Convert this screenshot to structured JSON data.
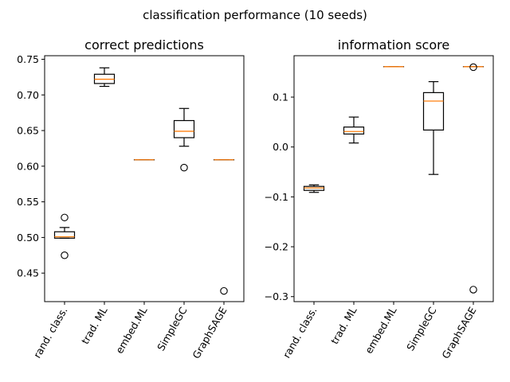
{
  "suptitle": "classification performance (10 seeds)",
  "chart_data": [
    {
      "type": "box",
      "title": "correct predictions",
      "categories": [
        "rand. class.",
        "trad. ML",
        "embed.ML",
        "SimpleGC",
        "GraphSAGE"
      ],
      "ylim": [
        0.41,
        0.755
      ],
      "yticks": [
        0.45,
        0.5,
        0.55,
        0.6,
        0.65,
        0.7,
        0.75
      ],
      "ytick_labels": [
        "0.45",
        "0.50",
        "0.55",
        "0.60",
        "0.65",
        "0.70",
        "0.75"
      ],
      "boxes": [
        {
          "whislo": 0.499,
          "q1": 0.499,
          "med": 0.501,
          "q3": 0.508,
          "whishi": 0.514,
          "fliers": [
            0.528,
            0.475
          ]
        },
        {
          "whislo": 0.712,
          "q1": 0.716,
          "med": 0.722,
          "q3": 0.729,
          "whishi": 0.738,
          "fliers": []
        },
        {
          "whislo": 0.609,
          "q1": 0.609,
          "med": 0.609,
          "q3": 0.609,
          "whishi": 0.609,
          "fliers": []
        },
        {
          "whislo": 0.628,
          "q1": 0.64,
          "med": 0.649,
          "q3": 0.664,
          "whishi": 0.681,
          "fliers": [
            0.598
          ]
        },
        {
          "whislo": 0.609,
          "q1": 0.609,
          "med": 0.609,
          "q3": 0.609,
          "whishi": 0.609,
          "fliers": [
            0.425
          ]
        }
      ]
    },
    {
      "type": "box",
      "title": "information score",
      "categories": [
        "rand. class.",
        "trad. ML",
        "embed.ML",
        "SimpleGC",
        "GraphSAGE"
      ],
      "ylim": [
        -0.31,
        0.183
      ],
      "yticks": [
        -0.3,
        -0.2,
        -0.1,
        0.0,
        0.1
      ],
      "ytick_labels": [
        "−0.3",
        "−0.2",
        "−0.1",
        "0.0",
        "0.1"
      ],
      "boxes": [
        {
          "whislo": -0.091,
          "q1": -0.087,
          "med": -0.082,
          "q3": -0.079,
          "whishi": -0.076,
          "fliers": []
        },
        {
          "whislo": 0.008,
          "q1": 0.026,
          "med": 0.031,
          "q3": 0.04,
          "whishi": 0.06,
          "fliers": []
        },
        {
          "whislo": 0.161,
          "q1": 0.161,
          "med": 0.161,
          "q3": 0.161,
          "whishi": 0.161,
          "fliers": []
        },
        {
          "whislo": -0.055,
          "q1": 0.034,
          "med": 0.092,
          "q3": 0.109,
          "whishi": 0.131,
          "fliers": []
        },
        {
          "whislo": 0.161,
          "q1": 0.161,
          "med": 0.161,
          "q3": 0.161,
          "whishi": 0.161,
          "fliers": [
            0.16,
            -0.286
          ]
        }
      ]
    }
  ],
  "colors": {
    "median": "#ff7f0e",
    "line": "#000000",
    "background": "#ffffff"
  }
}
